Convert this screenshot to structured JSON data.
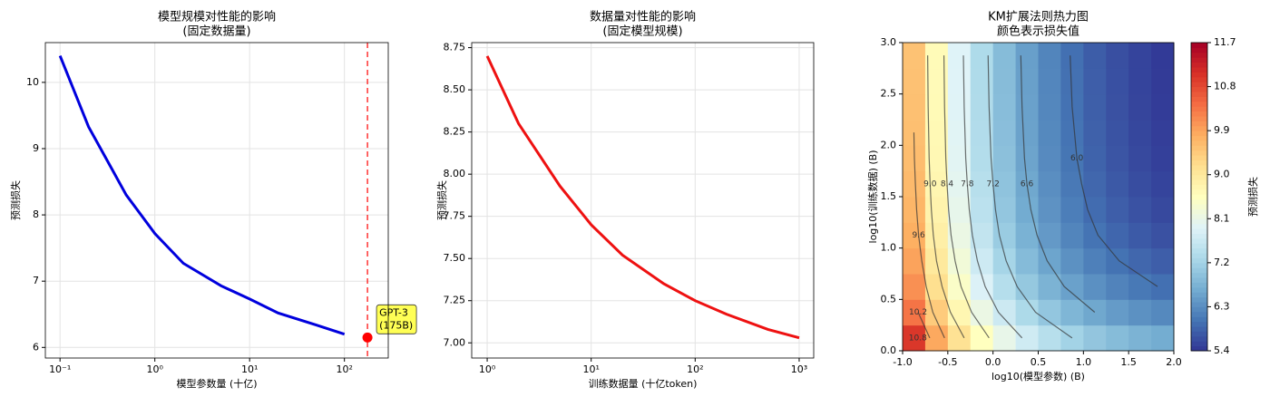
{
  "chart_data": [
    {
      "type": "line",
      "title": "模型规模对性能的影响",
      "subtitle": "(固定数据量)",
      "x_label": "模型参数量 (十亿)",
      "y_label": "预测损失",
      "x_scale": "log",
      "x": [
        0.1,
        0.2,
        0.5,
        1,
        2,
        5,
        10,
        20,
        50,
        100
      ],
      "series": [
        {
          "color": "#0000dd",
          "values": [
            10.4,
            9.33,
            8.3,
            7.72,
            7.27,
            6.93,
            6.73,
            6.52,
            6.34,
            6.2
          ]
        }
      ],
      "markers": [
        {
          "x": 175,
          "y": 6.15,
          "color": "#ff0000",
          "label": [
            "GPT-3",
            "(175B)"
          ]
        }
      ],
      "xlim": [
        0.07,
        290
      ],
      "ylim": [
        5.84,
        10.6
      ],
      "xticks": [
        {
          "value": 0.1,
          "label": "10⁻¹"
        },
        {
          "value": 1,
          "label": "10⁰"
        },
        {
          "value": 10,
          "label": "10¹"
        },
        {
          "value": 100,
          "label": "10²"
        }
      ],
      "yticks": [
        6,
        7,
        8,
        9,
        10
      ],
      "grid": true
    },
    {
      "type": "line",
      "title": "数据量对性能的影响",
      "subtitle": "(固定模型规模)",
      "x_label": "训练数据量 (十亿token)",
      "y_label": "预测损失",
      "x_scale": "log",
      "x": [
        1,
        2,
        5,
        10,
        20,
        50,
        100,
        200,
        500,
        1000
      ],
      "series": [
        {
          "color": "#ee1111",
          "values": [
            8.7,
            8.3,
            7.93,
            7.7,
            7.52,
            7.35,
            7.25,
            7.17,
            7.08,
            7.03
          ]
        }
      ],
      "xlim": [
        0.71,
        1380
      ],
      "ylim": [
        6.91,
        8.78
      ],
      "xticks": [
        {
          "value": 1,
          "label": "10⁰"
        },
        {
          "value": 10,
          "label": "10¹"
        },
        {
          "value": 100,
          "label": "10²"
        },
        {
          "value": 1000,
          "label": "10³"
        }
      ],
      "yticks": [
        {
          "value": 7,
          "label": "7.00"
        },
        7.25,
        {
          "value": 7.5,
          "label": "7.50"
        },
        7.75,
        {
          "value": 8,
          "label": "8.00"
        },
        8.25,
        {
          "value": 8.5,
          "label": "8.50"
        },
        8.75
      ],
      "grid": true
    },
    {
      "type": "contourf",
      "title": "KM扩展法则热力图",
      "subtitle": "颜色表示损失值",
      "x_label": "log10(模型参数) (B)",
      "y_label": "log10(训练数据) (B)",
      "colorbar_label": "预测损失",
      "colormap": "RdYlBu_r",
      "x": [
        -0.875,
        -0.625,
        -0.375,
        -0.125,
        0.125,
        0.375,
        0.625,
        0.875,
        1.125,
        1.375,
        1.625,
        1.875
      ],
      "y": [
        0.125,
        0.375,
        0.625,
        0.875,
        1.125,
        1.375,
        1.625,
        1.875,
        2.125,
        2.375,
        2.625,
        2.875
      ],
      "z": [
        [
          11.0,
          9.86,
          9.13,
          8.55,
          8.09,
          7.72,
          7.43,
          7.2,
          7.01,
          6.87,
          6.75,
          6.66
        ],
        [
          10.37,
          9.45,
          8.72,
          8.14,
          7.68,
          7.31,
          7.02,
          6.79,
          6.6,
          6.46,
          6.34,
          6.25
        ],
        [
          10.1,
          9.18,
          8.45,
          7.87,
          7.41,
          7.04,
          6.75,
          6.52,
          6.33,
          6.19,
          6.07,
          5.98
        ],
        [
          9.92,
          9.0,
          8.27,
          7.69,
          7.23,
          6.86,
          6.57,
          6.34,
          6.15,
          6.01,
          5.89,
          5.8
        ],
        [
          9.79,
          8.87,
          8.14,
          7.56,
          7.1,
          6.73,
          6.44,
          6.21,
          6.02,
          5.88,
          5.76,
          5.67
        ],
        [
          9.71,
          8.79,
          8.06,
          7.48,
          7.02,
          6.65,
          6.36,
          6.13,
          5.94,
          5.8,
          5.68,
          5.59
        ],
        [
          9.66,
          8.74,
          8.01,
          7.43,
          6.97,
          6.6,
          6.31,
          6.08,
          5.89,
          5.75,
          5.63,
          5.54
        ],
        [
          9.62,
          8.7,
          7.97,
          7.39,
          6.93,
          6.56,
          6.27,
          6.04,
          5.85,
          5.71,
          5.59,
          5.5
        ],
        [
          9.6,
          8.68,
          7.95,
          7.37,
          6.91,
          6.54,
          6.25,
          6.02,
          5.83,
          5.69,
          5.57,
          5.48
        ],
        [
          9.58,
          8.66,
          7.93,
          7.35,
          6.89,
          6.52,
          6.23,
          6.0,
          5.81,
          5.67,
          5.55,
          5.46
        ],
        [
          9.57,
          8.65,
          7.92,
          7.34,
          6.88,
          6.51,
          6.22,
          5.99,
          5.8,
          5.66,
          5.54,
          5.45
        ],
        [
          9.56,
          8.64,
          7.91,
          7.33,
          6.87,
          6.5,
          6.21,
          5.98,
          5.79,
          5.65,
          5.54,
          5.44
        ]
      ],
      "contour_levels": [
        {
          "value": 6,
          "label": "6.0"
        },
        6.6,
        7.2,
        7.8,
        8.4,
        {
          "value": 9,
          "label": "9.0"
        },
        9.6,
        10.2,
        10.8
      ],
      "xlim": [
        -1,
        2
      ],
      "ylim": [
        0,
        3
      ],
      "xticks": [
        {
          "value": -1,
          "label": "-1.0"
        },
        -0.5,
        {
          "value": 0,
          "label": "0.0"
        },
        0.5,
        {
          "value": 1,
          "label": "1.0"
        },
        1.5,
        {
          "value": 2,
          "label": "2.0"
        }
      ],
      "yticks": [
        {
          "value": 0,
          "label": "0.0"
        },
        0.5,
        {
          "value": 1,
          "label": "1.0"
        },
        1.5,
        {
          "value": 2,
          "label": "2.0"
        },
        2.5,
        {
          "value": 3,
          "label": "3.0"
        }
      ],
      "clim": [
        5.4,
        11.7
      ],
      "cticks": [
        5.4,
        6.3,
        7.2,
        8.1,
        {
          "value": 9,
          "label": "9.0"
        },
        9.9,
        10.8,
        11.7
      ],
      "grid": false
    }
  ]
}
